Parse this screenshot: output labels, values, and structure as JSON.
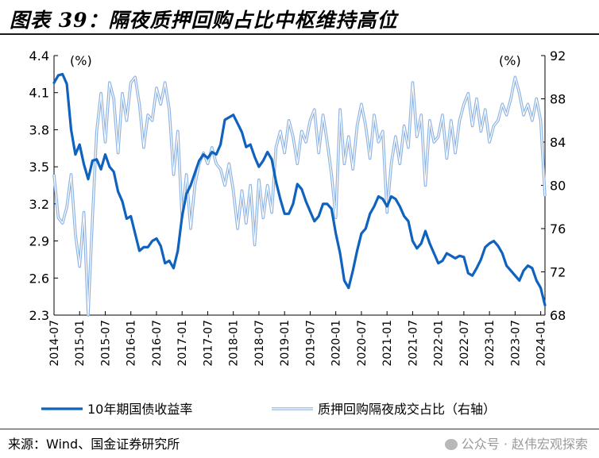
{
  "title": "图表 39：隔夜质押回购占比中枢维持高位",
  "source": "来源：Wind、国金证券研究所",
  "watermark": "公众号 · 赵伟宏观探索",
  "icons": {
    "watermark": "wechat-icon"
  },
  "chart_data": {
    "type": "line",
    "left_axis": {
      "unit_label": "(%)",
      "min": 2.3,
      "max": 4.4,
      "ticks": [
        "2.3",
        "2.6",
        "2.9",
        "3.2",
        "3.5",
        "3.8",
        "4.1",
        "4.4"
      ]
    },
    "right_axis": {
      "unit_label": "(%)",
      "min": 68,
      "max": 92,
      "ticks": [
        "68",
        "72",
        "76",
        "80",
        "84",
        "88",
        "92"
      ]
    },
    "x_range": [
      "2014-07",
      "2024-02"
    ],
    "x_ticks": [
      "2014-07",
      "2015-01",
      "2015-07",
      "2016-01",
      "2016-07",
      "2017-01",
      "2017-07",
      "2018-01",
      "2018-07",
      "2019-01",
      "2019-07",
      "2020-01",
      "2020-07",
      "2021-01",
      "2021-07",
      "2022-01",
      "2022-07",
      "2023-01",
      "2023-07",
      "2024-01"
    ],
    "series": [
      {
        "name": "10年期国债收益率",
        "axis": "left",
        "color": "#0f62be",
        "style": "solid",
        "points": [
          [
            "2014-07",
            4.18
          ],
          [
            "2014-08",
            4.24
          ],
          [
            "2014-09",
            4.25
          ],
          [
            "2014-10",
            4.17
          ],
          [
            "2014-11",
            3.8
          ],
          [
            "2014-12",
            3.6
          ],
          [
            "2015-01",
            3.68
          ],
          [
            "2015-02",
            3.52
          ],
          [
            "2015-03",
            3.4
          ],
          [
            "2015-04",
            3.55
          ],
          [
            "2015-05",
            3.56
          ],
          [
            "2015-06",
            3.48
          ],
          [
            "2015-07",
            3.6
          ],
          [
            "2015-08",
            3.5
          ],
          [
            "2015-09",
            3.46
          ],
          [
            "2015-10",
            3.3
          ],
          [
            "2015-11",
            3.22
          ],
          [
            "2015-12",
            3.08
          ],
          [
            "2016-01",
            3.1
          ],
          [
            "2016-02",
            2.96
          ],
          [
            "2016-03",
            2.82
          ],
          [
            "2016-04",
            2.85
          ],
          [
            "2016-05",
            2.85
          ],
          [
            "2016-06",
            2.9
          ],
          [
            "2016-07",
            2.92
          ],
          [
            "2016-08",
            2.86
          ],
          [
            "2016-09",
            2.72
          ],
          [
            "2016-10",
            2.74
          ],
          [
            "2016-11",
            2.68
          ],
          [
            "2016-12",
            2.82
          ],
          [
            "2017-01",
            3.1
          ],
          [
            "2017-02",
            3.28
          ],
          [
            "2017-03",
            3.35
          ],
          [
            "2017-04",
            3.45
          ],
          [
            "2017-05",
            3.55
          ],
          [
            "2017-06",
            3.6
          ],
          [
            "2017-07",
            3.57
          ],
          [
            "2017-08",
            3.62
          ],
          [
            "2017-09",
            3.6
          ],
          [
            "2017-10",
            3.68
          ],
          [
            "2017-11",
            3.88
          ],
          [
            "2017-12",
            3.9
          ],
          [
            "2018-01",
            3.92
          ],
          [
            "2018-02",
            3.85
          ],
          [
            "2018-03",
            3.78
          ],
          [
            "2018-04",
            3.66
          ],
          [
            "2018-05",
            3.68
          ],
          [
            "2018-06",
            3.58
          ],
          [
            "2018-07",
            3.5
          ],
          [
            "2018-08",
            3.55
          ],
          [
            "2018-09",
            3.62
          ],
          [
            "2018-10",
            3.56
          ],
          [
            "2018-11",
            3.38
          ],
          [
            "2018-12",
            3.24
          ],
          [
            "2019-01",
            3.12
          ],
          [
            "2019-02",
            3.12
          ],
          [
            "2019-03",
            3.2
          ],
          [
            "2019-04",
            3.36
          ],
          [
            "2019-05",
            3.32
          ],
          [
            "2019-06",
            3.22
          ],
          [
            "2019-07",
            3.14
          ],
          [
            "2019-08",
            3.06
          ],
          [
            "2019-09",
            3.1
          ],
          [
            "2019-10",
            3.2
          ],
          [
            "2019-11",
            3.2
          ],
          [
            "2019-12",
            3.16
          ],
          [
            "2020-01",
            2.96
          ],
          [
            "2020-02",
            2.8
          ],
          [
            "2020-03",
            2.58
          ],
          [
            "2020-04",
            2.52
          ],
          [
            "2020-05",
            2.66
          ],
          [
            "2020-06",
            2.82
          ],
          [
            "2020-07",
            2.96
          ],
          [
            "2020-08",
            3.0
          ],
          [
            "2020-09",
            3.12
          ],
          [
            "2020-10",
            3.18
          ],
          [
            "2020-11",
            3.26
          ],
          [
            "2020-12",
            3.24
          ],
          [
            "2021-01",
            3.18
          ],
          [
            "2021-02",
            3.26
          ],
          [
            "2021-03",
            3.24
          ],
          [
            "2021-04",
            3.18
          ],
          [
            "2021-05",
            3.1
          ],
          [
            "2021-06",
            3.06
          ],
          [
            "2021-07",
            2.9
          ],
          [
            "2021-08",
            2.84
          ],
          [
            "2021-09",
            2.88
          ],
          [
            "2021-10",
            2.98
          ],
          [
            "2021-11",
            2.88
          ],
          [
            "2021-12",
            2.8
          ],
          [
            "2022-01",
            2.72
          ],
          [
            "2022-02",
            2.74
          ],
          [
            "2022-03",
            2.8
          ],
          [
            "2022-04",
            2.78
          ],
          [
            "2022-05",
            2.76
          ],
          [
            "2022-06",
            2.78
          ],
          [
            "2022-07",
            2.77
          ],
          [
            "2022-08",
            2.64
          ],
          [
            "2022-09",
            2.62
          ],
          [
            "2022-10",
            2.68
          ],
          [
            "2022-11",
            2.75
          ],
          [
            "2022-12",
            2.85
          ],
          [
            "2023-01",
            2.88
          ],
          [
            "2023-02",
            2.9
          ],
          [
            "2023-03",
            2.86
          ],
          [
            "2023-04",
            2.8
          ],
          [
            "2023-05",
            2.7
          ],
          [
            "2023-06",
            2.66
          ],
          [
            "2023-07",
            2.62
          ],
          [
            "2023-08",
            2.58
          ],
          [
            "2023-09",
            2.66
          ],
          [
            "2023-10",
            2.7
          ],
          [
            "2023-11",
            2.68
          ],
          [
            "2023-12",
            2.58
          ],
          [
            "2024-01",
            2.52
          ],
          [
            "2024-02",
            2.38
          ]
        ]
      },
      {
        "name": "质押回购隔夜成交占比（右轴）",
        "axis": "right",
        "color": "#8fb4e3",
        "style": "double",
        "points": [
          [
            "2014-07",
            81.0
          ],
          [
            "2014-08",
            77.0
          ],
          [
            "2014-09",
            76.5
          ],
          [
            "2014-10",
            78.0
          ],
          [
            "2014-11",
            81.0
          ],
          [
            "2014-12",
            75.5
          ],
          [
            "2015-01",
            72.5
          ],
          [
            "2015-02",
            77.5
          ],
          [
            "2015-03",
            68.0
          ],
          [
            "2015-04",
            77.0
          ],
          [
            "2015-05",
            85.0
          ],
          [
            "2015-06",
            88.5
          ],
          [
            "2015-07",
            84.0
          ],
          [
            "2015-08",
            89.5
          ],
          [
            "2015-09",
            88.0
          ],
          [
            "2015-10",
            83.0
          ],
          [
            "2015-11",
            88.5
          ],
          [
            "2015-12",
            86.0
          ],
          [
            "2016-01",
            89.5
          ],
          [
            "2016-02",
            90.0
          ],
          [
            "2016-03",
            87.5
          ],
          [
            "2016-04",
            83.5
          ],
          [
            "2016-05",
            86.5
          ],
          [
            "2016-06",
            86.0
          ],
          [
            "2016-07",
            89.0
          ],
          [
            "2016-08",
            87.5
          ],
          [
            "2016-09",
            89.5
          ],
          [
            "2016-10",
            87.0
          ],
          [
            "2016-11",
            81.0
          ],
          [
            "2016-12",
            85.0
          ],
          [
            "2017-01",
            77.0
          ],
          [
            "2017-02",
            81.0
          ],
          [
            "2017-03",
            76.0
          ],
          [
            "2017-04",
            80.0
          ],
          [
            "2017-05",
            82.0
          ],
          [
            "2017-06",
            83.0
          ],
          [
            "2017-07",
            82.0
          ],
          [
            "2017-08",
            83.5
          ],
          [
            "2017-09",
            82.0
          ],
          [
            "2017-10",
            81.5
          ],
          [
            "2017-11",
            80.0
          ],
          [
            "2017-12",
            82.0
          ],
          [
            "2018-01",
            79.5
          ],
          [
            "2018-02",
            76.0
          ],
          [
            "2018-03",
            79.5
          ],
          [
            "2018-04",
            76.5
          ],
          [
            "2018-05",
            80.0
          ],
          [
            "2018-06",
            74.5
          ],
          [
            "2018-07",
            80.5
          ],
          [
            "2018-08",
            77.0
          ],
          [
            "2018-09",
            80.0
          ],
          [
            "2018-10",
            77.5
          ],
          [
            "2018-11",
            83.5
          ],
          [
            "2018-12",
            85.0
          ],
          [
            "2019-01",
            83.0
          ],
          [
            "2019-02",
            86.0
          ],
          [
            "2019-03",
            84.5
          ],
          [
            "2019-04",
            82.0
          ],
          [
            "2019-05",
            85.0
          ],
          [
            "2019-06",
            84.0
          ],
          [
            "2019-07",
            86.0
          ],
          [
            "2019-08",
            87.0
          ],
          [
            "2019-09",
            83.0
          ],
          [
            "2019-10",
            86.5
          ],
          [
            "2019-11",
            84.0
          ],
          [
            "2019-12",
            81.0
          ],
          [
            "2020-01",
            77.0
          ],
          [
            "2020-02",
            87.0
          ],
          [
            "2020-03",
            82.0
          ],
          [
            "2020-04",
            84.5
          ],
          [
            "2020-05",
            81.5
          ],
          [
            "2020-06",
            85.5
          ],
          [
            "2020-07",
            87.5
          ],
          [
            "2020-08",
            85.5
          ],
          [
            "2020-09",
            82.5
          ],
          [
            "2020-10",
            86.5
          ],
          [
            "2020-11",
            84.0
          ],
          [
            "2020-12",
            85.0
          ],
          [
            "2021-01",
            77.5
          ],
          [
            "2021-02",
            82.0
          ],
          [
            "2021-03",
            84.5
          ],
          [
            "2021-04",
            82.0
          ],
          [
            "2021-05",
            85.5
          ],
          [
            "2021-06",
            83.5
          ],
          [
            "2021-07",
            89.5
          ],
          [
            "2021-08",
            84.5
          ],
          [
            "2021-09",
            86.5
          ],
          [
            "2021-10",
            80.0
          ],
          [
            "2021-11",
            86.0
          ],
          [
            "2021-12",
            84.0
          ],
          [
            "2022-01",
            84.5
          ],
          [
            "2022-02",
            86.5
          ],
          [
            "2022-03",
            82.5
          ],
          [
            "2022-04",
            86.0
          ],
          [
            "2022-05",
            83.0
          ],
          [
            "2022-06",
            86.0
          ],
          [
            "2022-07",
            87.5
          ],
          [
            "2022-08",
            88.5
          ],
          [
            "2022-09",
            85.5
          ],
          [
            "2022-10",
            88.0
          ],
          [
            "2022-11",
            85.0
          ],
          [
            "2022-12",
            87.0
          ],
          [
            "2023-01",
            84.0
          ],
          [
            "2023-02",
            85.5
          ],
          [
            "2023-03",
            86.0
          ],
          [
            "2023-04",
            87.5
          ],
          [
            "2023-05",
            86.5
          ],
          [
            "2023-06",
            88.0
          ],
          [
            "2023-07",
            90.0
          ],
          [
            "2023-08",
            88.5
          ],
          [
            "2023-09",
            86.5
          ],
          [
            "2023-10",
            87.5
          ],
          [
            "2023-11",
            86.0
          ],
          [
            "2023-12",
            88.0
          ],
          [
            "2024-01",
            86.0
          ],
          [
            "2024-02",
            79.0
          ]
        ]
      }
    ],
    "legend": {
      "position": "bottom"
    },
    "grid": false
  }
}
